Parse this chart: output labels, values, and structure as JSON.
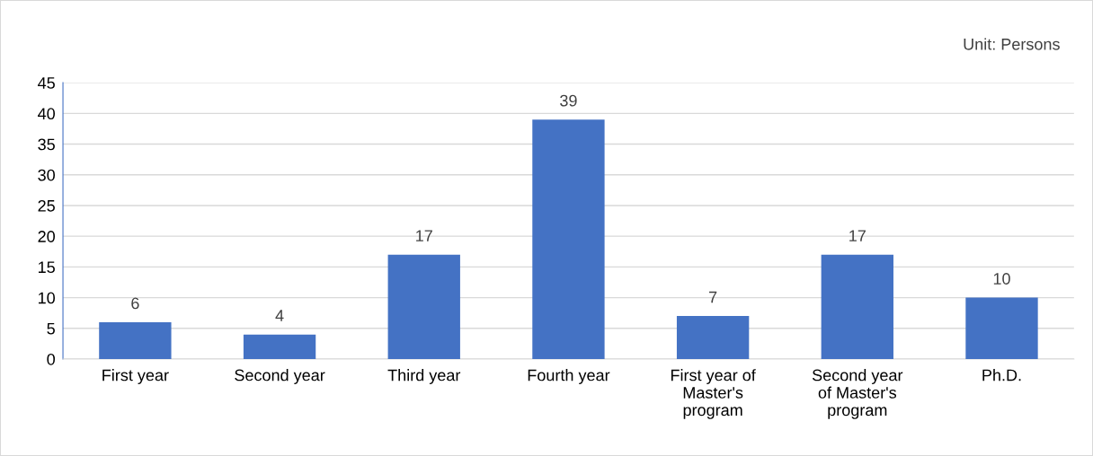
{
  "chart_data": {
    "type": "bar",
    "categories": [
      "First year",
      "Second year",
      "Third year",
      "Fourth year",
      "First year of\nMaster's\nprogram",
      "Second year\nof Master's\nprogram",
      "Ph.D."
    ],
    "values": [
      6,
      4,
      17,
      39,
      7,
      17,
      10
    ],
    "color": "#4472c4",
    "ylim": [
      0,
      45
    ],
    "yticks": [
      0,
      5,
      10,
      15,
      20,
      25,
      30,
      35,
      40,
      45
    ],
    "grid": "y",
    "data_labels": true,
    "annotations": [
      "Unit: Persons"
    ]
  }
}
